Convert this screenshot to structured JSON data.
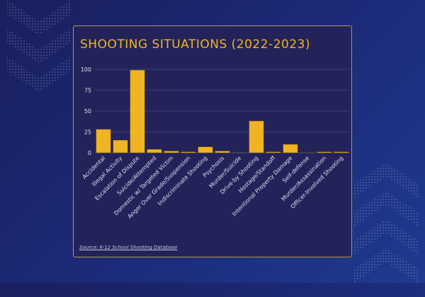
{
  "chart_data": {
    "type": "bar",
    "title": "SHOOTING SITUATIONS (2022-2023)",
    "xlabel": "",
    "ylabel": "",
    "ylim": [
      0,
      100
    ],
    "yticks": [
      "0",
      "25",
      "50",
      "75",
      "100"
    ],
    "grid": true,
    "categories": [
      "Accidental",
      "Illegal Activity",
      "Escalation of Dispute",
      "Suicide/Attempted",
      "Domestic w/ Targeted Victim",
      "Anger Over Grade/Suspension",
      "Indiscriminate Shooting",
      "Psychosis",
      "Murder/Suicide",
      "Drive-by Shooting",
      "Hostage/Standoff",
      "Intentional Property Damage",
      "Self-defense",
      "Murder/Assassination",
      "Officer-Involved Shooting"
    ],
    "values": [
      28,
      15,
      99,
      4,
      2,
      1,
      7,
      2,
      0,
      38,
      1,
      10,
      0,
      1,
      1
    ],
    "bar_color": "#f0b323"
  },
  "source": "Source: K-12 School Shooting Database"
}
